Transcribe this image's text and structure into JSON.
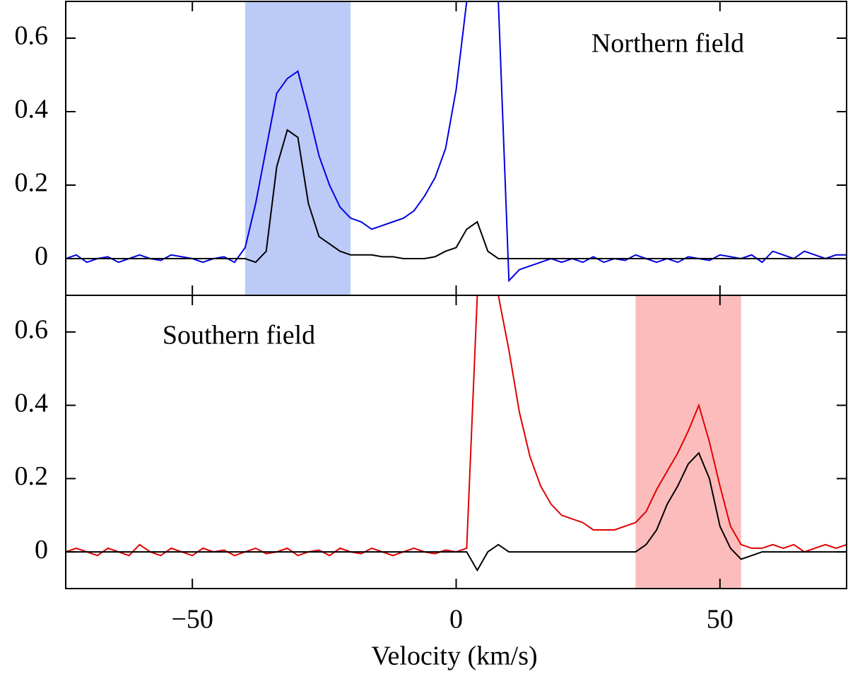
{
  "chart_data": [
    {
      "type": "line",
      "annotation": "Northern field",
      "x": [
        -74,
        -72,
        -70,
        -68,
        -66,
        -64,
        -62,
        -60,
        -58,
        -56,
        -54,
        -52,
        -50,
        -48,
        -46,
        -44,
        -42,
        -40,
        -38,
        -36,
        -34,
        -32,
        -30,
        -28,
        -26,
        -24,
        -22,
        -20,
        -18,
        -16,
        -14,
        -12,
        -10,
        -8,
        -6,
        -4,
        -2,
        0,
        2,
        4,
        6,
        8,
        10,
        12,
        14,
        16,
        18,
        20,
        22,
        24,
        26,
        28,
        30,
        32,
        34,
        36,
        38,
        40,
        42,
        44,
        46,
        48,
        50,
        52,
        54,
        56,
        58,
        60,
        62,
        64,
        66,
        68,
        70,
        72,
        74
      ],
      "series": [
        {
          "color": "#0000e0",
          "values": [
            0,
            0.01,
            -0.01,
            0,
            0.005,
            -0.01,
            0,
            0.01,
            0,
            -0.005,
            0.01,
            0.005,
            0,
            -0.01,
            0,
            0.005,
            -0.01,
            0.03,
            0.15,
            0.3,
            0.45,
            0.49,
            0.51,
            0.4,
            0.28,
            0.2,
            0.14,
            0.11,
            0.1,
            0.08,
            0.09,
            0.1,
            0.11,
            0.13,
            0.17,
            0.22,
            0.3,
            0.46,
            0.7,
            0.7,
            0.7,
            0.7,
            -0.06,
            -0.03,
            -0.02,
            -0.01,
            0,
            -0.01,
            0,
            -0.01,
            0.005,
            -0.01,
            0,
            -0.005,
            0.01,
            0,
            -0.01,
            0,
            -0.01,
            0.005,
            0,
            -0.005,
            0.01,
            0.005,
            0,
            0.01,
            -0.01,
            0.02,
            0.01,
            0,
            0.02,
            0.01,
            0,
            0.01,
            0.01
          ]
        },
        {
          "color": "#000000",
          "values": [
            0,
            0,
            0,
            0,
            0,
            0,
            0,
            0,
            0,
            0,
            0,
            0,
            0,
            0,
            0,
            0,
            0,
            0,
            -0.01,
            0.02,
            0.25,
            0.35,
            0.33,
            0.15,
            0.06,
            0.04,
            0.02,
            0.01,
            0.01,
            0.01,
            0.005,
            0.005,
            0,
            0,
            0,
            0.005,
            0.02,
            0.03,
            0.08,
            0.1,
            0.02,
            0,
            0,
            0,
            0,
            0,
            0,
            0,
            0,
            0,
            0,
            0,
            0,
            0,
            0,
            0,
            0,
            0,
            0,
            0,
            0,
            0,
            0,
            0,
            0,
            0,
            0,
            0,
            0,
            0,
            0,
            0,
            0,
            0,
            0
          ]
        }
      ],
      "bands": [
        {
          "from": -40,
          "to": -20,
          "color": "#bccaf8"
        }
      ],
      "xlim": [
        -74,
        74
      ],
      "ylim": [
        -0.1,
        0.7
      ],
      "yticks": [
        0,
        0.2,
        0.4,
        0.6
      ]
    },
    {
      "type": "line",
      "annotation": "Southern field",
      "x_label": "Velocity (km/s)",
      "x": [
        -74,
        -72,
        -70,
        -68,
        -66,
        -64,
        -62,
        -60,
        -58,
        -56,
        -54,
        -52,
        -50,
        -48,
        -46,
        -44,
        -42,
        -40,
        -38,
        -36,
        -34,
        -32,
        -30,
        -28,
        -26,
        -24,
        -22,
        -20,
        -18,
        -16,
        -14,
        -12,
        -10,
        -8,
        -6,
        -4,
        -2,
        0,
        2,
        4,
        6,
        8,
        10,
        12,
        14,
        16,
        18,
        20,
        22,
        24,
        26,
        28,
        30,
        32,
        34,
        36,
        38,
        40,
        42,
        44,
        46,
        48,
        50,
        52,
        54,
        56,
        58,
        60,
        62,
        64,
        66,
        68,
        70,
        72,
        74
      ],
      "series": [
        {
          "color": "#e00000",
          "values": [
            0,
            0.01,
            0,
            -0.01,
            0.01,
            0,
            -0.01,
            0.02,
            0,
            -0.01,
            0.01,
            0,
            -0.01,
            0.01,
            0,
            0.005,
            -0.01,
            0,
            0.01,
            -0.005,
            0,
            0.01,
            -0.01,
            0,
            0.005,
            -0.01,
            0.01,
            0,
            -0.005,
            0.01,
            0,
            -0.01,
            0,
            0.01,
            0,
            -0.005,
            0.005,
            0,
            0.01,
            0.7,
            0.7,
            0.7,
            0.55,
            0.38,
            0.26,
            0.18,
            0.13,
            0.1,
            0.09,
            0.08,
            0.06,
            0.06,
            0.06,
            0.07,
            0.08,
            0.11,
            0.17,
            0.22,
            0.27,
            0.33,
            0.4,
            0.3,
            0.18,
            0.07,
            0.02,
            0.01,
            0.01,
            0.02,
            0.01,
            0.02,
            0,
            0.01,
            0.02,
            0.01,
            0.02
          ]
        },
        {
          "color": "#000000",
          "values": [
            0,
            0,
            0,
            0,
            0,
            0,
            0,
            0,
            0,
            0,
            0,
            0,
            0,
            0,
            0,
            0,
            0,
            0,
            0,
            0,
            0,
            0,
            0,
            0,
            0,
            0,
            0,
            0,
            0,
            0,
            0,
            0,
            0,
            0,
            0,
            0,
            0,
            0,
            0,
            -0.05,
            0,
            0.02,
            0,
            0,
            0,
            0,
            0,
            0,
            0,
            0,
            0,
            0,
            0,
            0,
            0,
            0.02,
            0.06,
            0.13,
            0.18,
            0.24,
            0.27,
            0.2,
            0.07,
            0.01,
            -0.02,
            -0.01,
            0,
            0,
            0,
            0,
            0,
            0,
            0,
            0,
            0
          ]
        }
      ],
      "bands": [
        {
          "from": 34,
          "to": 54,
          "color": "#fdbcbc"
        }
      ],
      "xlim": [
        -74,
        74
      ],
      "ylim": [
        -0.1,
        0.7
      ],
      "yticks": [
        0,
        0.2,
        0.4,
        0.6
      ],
      "xticks": [
        {
          "value": -50,
          "label": "−50"
        },
        0,
        50
      ]
    }
  ]
}
